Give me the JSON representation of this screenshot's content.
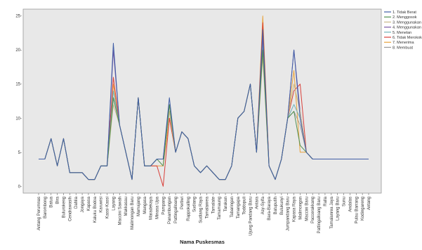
{
  "chart_data": {
    "type": "line",
    "xlabel": "Nama Puskesmas",
    "ylabel": "",
    "ylim": [
      -1,
      26
    ],
    "yticks": [
      {
        "value": 0,
        "label": "0-"
      },
      {
        "value": 5,
        "label": "5-"
      },
      {
        "value": 10,
        "label": "10-"
      },
      {
        "value": 15,
        "label": "15-"
      },
      {
        "value": 20,
        "label": "20-"
      },
      {
        "value": 25,
        "label": "25-"
      }
    ],
    "grid": false,
    "legend_position": "right",
    "plot_background": "#e8e8e8",
    "categories": [
      "Antang Perumnas",
      "Barombong",
      "Batua",
      "Bira",
      "Bulurokeng",
      "Cendrawasih",
      "Dahlia",
      "Jongaya",
      "Kapasa",
      "Kaluku Bodoa",
      "Karuwisi",
      "Kassi-Kassi",
      "Layang",
      "Maccini Sawah",
      "Makkasau",
      "Malimongan Baru",
      "Mamajang",
      "Mangasa",
      "Maradekaya",
      "Minasa Upa",
      "Pampang",
      "Panambungan",
      "Pattingalloang",
      "Pertiwi",
      "Rappokalling",
      "Sudiang",
      "Sudiang Raya",
      "Tamalanrea",
      "Tamalate",
      "Tamamaung",
      "Tarakan",
      "Tabaringan",
      "Tamangapa",
      "Toddopuli",
      "Ujung Pandang Baru",
      "Antara",
      "Asy-Syifa",
      "Bara-Baraya",
      "Batuputih",
      "Bulukunyi",
      "Jumpandang Baru",
      "Kapasa Raya",
      "Malimongan",
      "Maccini Baru",
      "Paccerakkang",
      "Pattingalloang Baru",
      "Ralla",
      "Tamalanrea Jaya",
      "Layang Baru",
      "Sunu",
      "Andalas",
      "Pulau Barrang",
      "Kodingareng",
      "Antang"
    ],
    "series": [
      {
        "name": "1. Tidak Berat",
        "color": "#3f5da6",
        "values": [
          4,
          4,
          7,
          3,
          7,
          2,
          2,
          2,
          1,
          1,
          3,
          3,
          21,
          9,
          5,
          1,
          13,
          3,
          3,
          4,
          4,
          13,
          5,
          8,
          7,
          3,
          2,
          3,
          2,
          1,
          1,
          3,
          10,
          11,
          15,
          5,
          23,
          3,
          1,
          4,
          10,
          20,
          10,
          5,
          4,
          4,
          4,
          4,
          4,
          4,
          4,
          4,
          4,
          4
        ]
      },
      {
        "name": "2. Menggosok",
        "color": "#4f8f4f",
        "values": [
          4,
          4,
          7,
          3,
          7,
          2,
          2,
          2,
          1,
          1,
          3,
          3,
          13,
          9,
          5,
          1,
          13,
          3,
          3,
          4,
          3,
          12,
          5,
          8,
          7,
          3,
          2,
          3,
          2,
          1,
          1,
          3,
          10,
          11,
          15,
          5,
          20,
          3,
          1,
          4,
          10,
          11,
          6,
          5,
          4,
          4,
          4,
          4,
          4,
          4,
          4,
          4,
          4,
          4
        ]
      },
      {
        "name": "3. Menggunakan",
        "color": "#c9b98a",
        "values": [
          4,
          4,
          7,
          3,
          7,
          2,
          2,
          2,
          1,
          1,
          3,
          3,
          12,
          9,
          5,
          1,
          13,
          3,
          3,
          4,
          4,
          11,
          5,
          8,
          7,
          3,
          2,
          3,
          2,
          1,
          1,
          3,
          10,
          11,
          15,
          5,
          19,
          3,
          1,
          4,
          10,
          15,
          11,
          5,
          4,
          4,
          4,
          4,
          4,
          4,
          4,
          4,
          4,
          4
        ]
      },
      {
        "name": "4. Menggunakan",
        "color": "#7b5aa6",
        "values": [
          4,
          4,
          7,
          3,
          7,
          2,
          2,
          2,
          1,
          1,
          3,
          3,
          20,
          9,
          5,
          1,
          13,
          3,
          3,
          4,
          4,
          12,
          5,
          8,
          7,
          3,
          2,
          3,
          2,
          1,
          1,
          3,
          10,
          11,
          15,
          5,
          22,
          3,
          1,
          4,
          10,
          20,
          11,
          5,
          4,
          4,
          4,
          4,
          4,
          4,
          4,
          4,
          4,
          4
        ]
      },
      {
        "name": "5. Menelan",
        "color": "#6fb2b8",
        "values": [
          4,
          4,
          7,
          3,
          7,
          2,
          2,
          2,
          1,
          1,
          3,
          3,
          14,
          9,
          5,
          1,
          13,
          3,
          3,
          4,
          4,
          11,
          5,
          8,
          7,
          3,
          2,
          3,
          2,
          1,
          1,
          3,
          10,
          11,
          15,
          5,
          21,
          3,
          1,
          4,
          10,
          12,
          10,
          5,
          4,
          4,
          4,
          4,
          4,
          4,
          4,
          4,
          4,
          4
        ]
      },
      {
        "name": "6. Tidak Merokok",
        "color": "#d9403a",
        "values": [
          4,
          4,
          7,
          3,
          7,
          2,
          2,
          2,
          1,
          1,
          3,
          3,
          16,
          9,
          5,
          1,
          13,
          3,
          3,
          3,
          0,
          10,
          5,
          8,
          7,
          3,
          2,
          3,
          2,
          1,
          1,
          3,
          10,
          11,
          15,
          5,
          24,
          3,
          1,
          4,
          10,
          14,
          15,
          5,
          4,
          4,
          4,
          4,
          4,
          4,
          4,
          4,
          4,
          4
        ]
      },
      {
        "name": "7. Menerima",
        "color": "#e8a23c",
        "values": [
          4,
          4,
          7,
          3,
          7,
          2,
          2,
          2,
          1,
          1,
          3,
          3,
          15,
          9,
          5,
          1,
          13,
          3,
          3,
          3,
          3,
          10,
          5,
          8,
          7,
          3,
          2,
          3,
          2,
          1,
          1,
          3,
          10,
          11,
          15,
          5,
          25,
          3,
          1,
          4,
          10,
          17,
          5,
          5,
          4,
          4,
          4,
          4,
          4,
          4,
          4,
          4,
          4,
          4
        ]
      },
      {
        "name": "8. Membuat",
        "color": "#9a9a9a",
        "values": [
          4,
          4,
          7,
          3,
          7,
          2,
          2,
          2,
          1,
          1,
          3,
          3,
          13,
          9,
          5,
          1,
          13,
          3,
          3,
          4,
          4,
          11,
          5,
          8,
          7,
          3,
          2,
          3,
          2,
          1,
          1,
          3,
          10,
          11,
          15,
          5,
          20,
          3,
          1,
          4,
          10,
          11,
          9,
          5,
          4,
          4,
          4,
          4,
          4,
          4,
          4,
          4,
          4,
          4
        ]
      }
    ]
  }
}
